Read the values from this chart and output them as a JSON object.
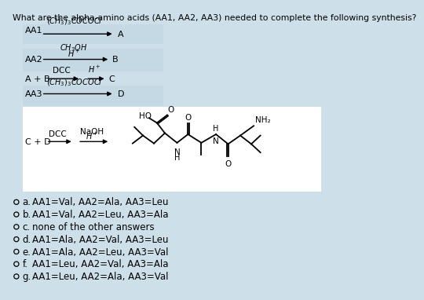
{
  "title": "What are the alpha-amino acids (AA1, AA2, AA3) needed to complete the following synthesis?",
  "background_color": "#cde0ea",
  "light_box_bg": "#cde0ea",
  "white_box_bg": "#ffffff",
  "options": [
    {
      "letter": "a.",
      "text": "AA1=Val, AA2=Ala, AA3=Leu"
    },
    {
      "letter": "b.",
      "text": "AA1=Val, AA2=Leu, AA3=Ala"
    },
    {
      "letter": "c.",
      "text": "none of the other answers"
    },
    {
      "letter": "d.",
      "text": "AA1=Ala, AA2=Val, AA3=Leu"
    },
    {
      "letter": "e.",
      "text": "AA1=Ala, AA2=Leu, AA3=Val"
    },
    {
      "letter": "f.",
      "text": "AA1=Leu, AA2=Val, AA3=Ala"
    },
    {
      "letter": "g.",
      "text": "AA1=Leu, AA2=Ala, AA3=Val"
    }
  ]
}
